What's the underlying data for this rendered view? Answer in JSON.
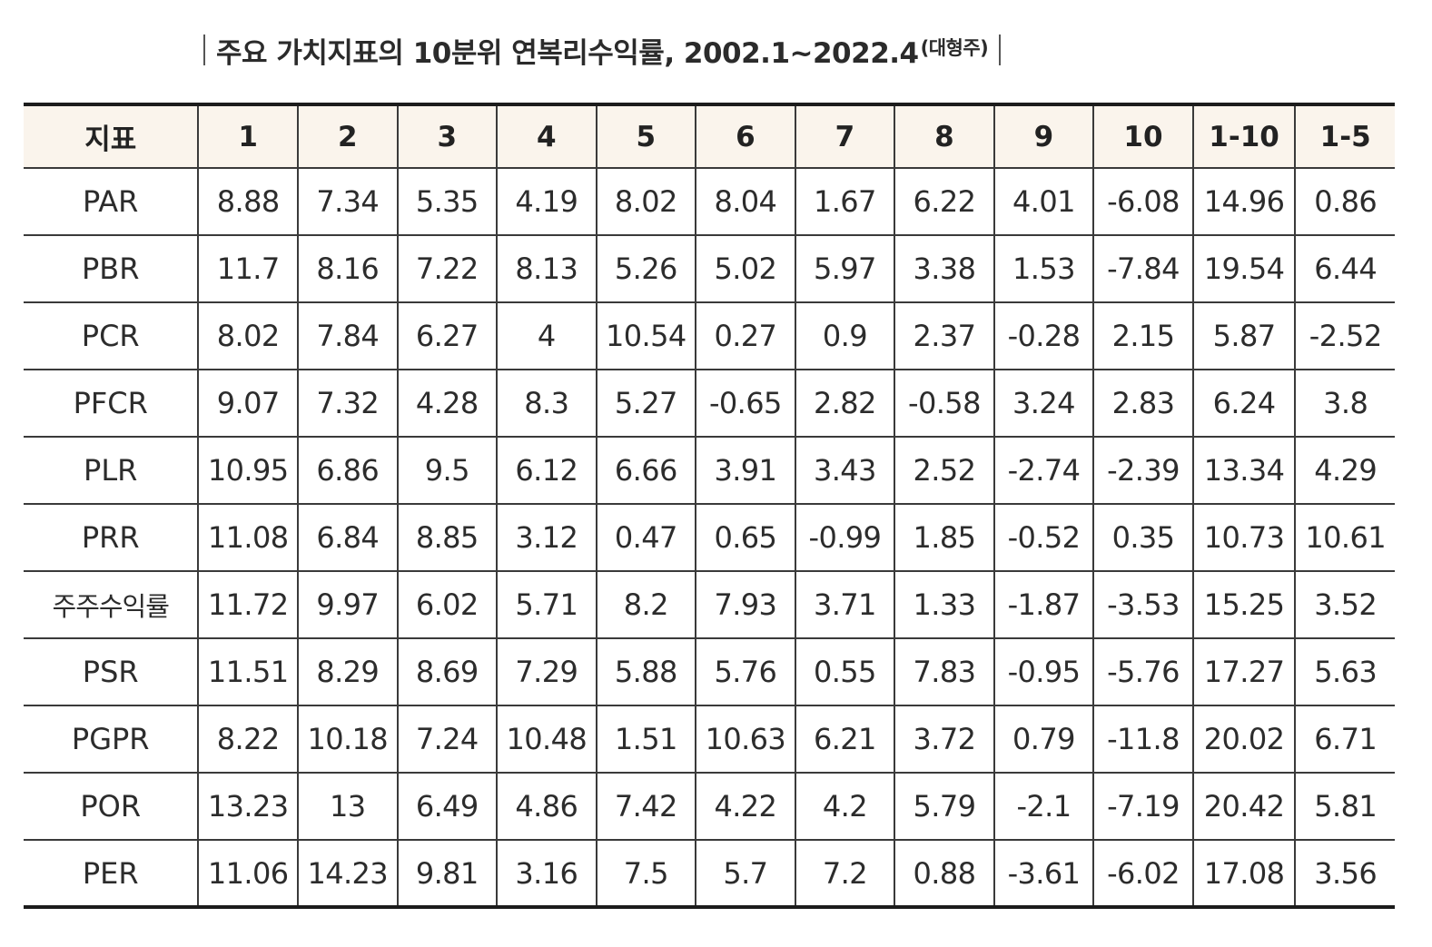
{
  "title": {
    "main": "주요 가치지표의 10분위 연복리수익률, 2002.1~2022.4",
    "sub": "(대형주)"
  },
  "table": {
    "headers": [
      "지표",
      "1",
      "2",
      "3",
      "4",
      "5",
      "6",
      "7",
      "8",
      "9",
      "10",
      "1-10",
      "1-5"
    ],
    "rows": [
      {
        "label": "PAR",
        "values": [
          "8.88",
          "7.34",
          "5.35",
          "4.19",
          "8.02",
          "8.04",
          "1.67",
          "6.22",
          "4.01",
          "-6.08",
          "14.96",
          "0.86"
        ]
      },
      {
        "label": "PBR",
        "values": [
          "11.7",
          "8.16",
          "7.22",
          "8.13",
          "5.26",
          "5.02",
          "5.97",
          "3.38",
          "1.53",
          "-7.84",
          "19.54",
          "6.44"
        ]
      },
      {
        "label": "PCR",
        "values": [
          "8.02",
          "7.84",
          "6.27",
          "4",
          "10.54",
          "0.27",
          "0.9",
          "2.37",
          "-0.28",
          "2.15",
          "5.87",
          "-2.52"
        ]
      },
      {
        "label": "PFCR",
        "values": [
          "9.07",
          "7.32",
          "4.28",
          "8.3",
          "5.27",
          "-0.65",
          "2.82",
          "-0.58",
          "3.24",
          "2.83",
          "6.24",
          "3.8"
        ]
      },
      {
        "label": "PLR",
        "values": [
          "10.95",
          "6.86",
          "9.5",
          "6.12",
          "6.66",
          "3.91",
          "3.43",
          "2.52",
          "-2.74",
          "-2.39",
          "13.34",
          "4.29"
        ]
      },
      {
        "label": "PRR",
        "values": [
          "11.08",
          "6.84",
          "8.85",
          "3.12",
          "0.47",
          "0.65",
          "-0.99",
          "1.85",
          "-0.52",
          "0.35",
          "10.73",
          "10.61"
        ]
      },
      {
        "label": "주주수익률",
        "values": [
          "11.72",
          "9.97",
          "6.02",
          "5.71",
          "8.2",
          "7.93",
          "3.71",
          "1.33",
          "-1.87",
          "-3.53",
          "15.25",
          "3.52"
        ]
      },
      {
        "label": "PSR",
        "values": [
          "11.51",
          "8.29",
          "8.69",
          "7.29",
          "5.88",
          "5.76",
          "0.55",
          "7.83",
          "-0.95",
          "-5.76",
          "17.27",
          "5.63"
        ]
      },
      {
        "label": "PGPR",
        "values": [
          "8.22",
          "10.18",
          "7.24",
          "10.48",
          "1.51",
          "10.63",
          "6.21",
          "3.72",
          "0.79",
          "-11.8",
          "20.02",
          "6.71"
        ]
      },
      {
        "label": "POR",
        "values": [
          "13.23",
          "13",
          "6.49",
          "4.86",
          "7.42",
          "4.22",
          "4.2",
          "5.79",
          "-2.1",
          "-7.19",
          "20.42",
          "5.81"
        ]
      },
      {
        "label": "PER",
        "values": [
          "11.06",
          "14.23",
          "9.81",
          "3.16",
          "7.5",
          "5.7",
          "7.2",
          "0.88",
          "-3.61",
          "-6.02",
          "17.08",
          "3.56"
        ]
      }
    ]
  }
}
